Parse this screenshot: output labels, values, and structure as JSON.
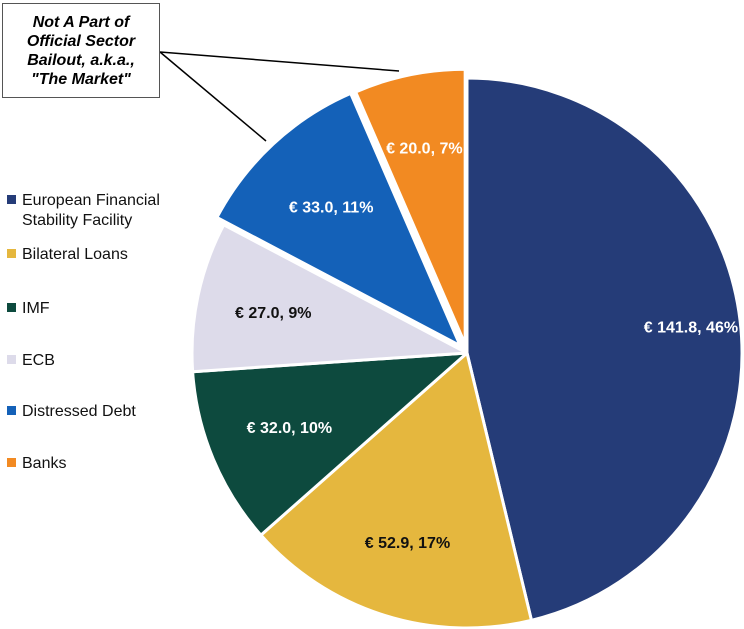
{
  "callout": {
    "lines": [
      "Not A Part of",
      "Official Sector",
      "Bailout, a.k.a.,",
      "\"The Market\""
    ]
  },
  "legend": {
    "items": [
      {
        "label": "European Financial\nStability Facility"
      },
      {
        "label": "Bilateral Loans"
      },
      {
        "label": "IMF"
      },
      {
        "label": "ECB"
      },
      {
        "label": "Distressed Debt"
      },
      {
        "label": "Banks"
      }
    ]
  },
  "chart_data": {
    "type": "pie",
    "title": "",
    "currency": "€",
    "slices": [
      {
        "name": "European Financial Stability Facility",
        "value": 141.8,
        "percent": 46,
        "label": "€ 141.8, 46%",
        "color": "#253c78",
        "exploded": false
      },
      {
        "name": "Bilateral Loans",
        "value": 52.9,
        "percent": 17,
        "label": "€ 52.9, 17%",
        "color": "#e5b73e",
        "exploded": false
      },
      {
        "name": "IMF",
        "value": 32.0,
        "percent": 10,
        "label": "€ 32.0, 10%",
        "color": "#0d4a3e",
        "exploded": false
      },
      {
        "name": "ECB",
        "value": 27.0,
        "percent": 9,
        "label": "€ 27.0, 9%",
        "color": "#dddbea",
        "exploded": false
      },
      {
        "name": "Distressed Debt",
        "value": 33.0,
        "percent": 11,
        "label": "€ 33.0, 11%",
        "color": "#1461b8",
        "exploded": true
      },
      {
        "name": "Banks",
        "value": 20.0,
        "percent": 7,
        "label": "€ 20.0, 7%",
        "color": "#f28a22",
        "exploded": true
      }
    ],
    "label_colors": {
      "dark_bg": "#ffffff",
      "light_bg": "#111111"
    }
  }
}
